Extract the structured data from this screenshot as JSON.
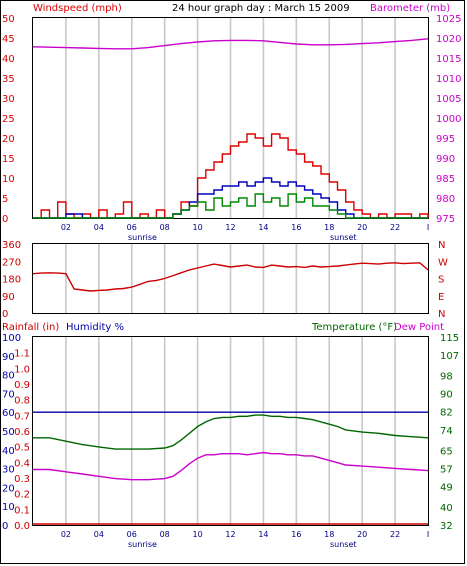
{
  "header": {
    "title": "24 hour graph day : March 15 2009",
    "left_label": "Windspeed (mph)",
    "right_label": "Barometer (mb)"
  },
  "colors": {
    "wind": "#dd0000",
    "gust": "#0000bb",
    "avg": "#008800",
    "baro": "#cc00cc",
    "dir": "#cc0000",
    "rain": "#cc0000",
    "humidity": "#0000aa",
    "temp": "#006600",
    "dew": "#cc00cc",
    "grid": "#c8c8c8",
    "frame": "#000000"
  },
  "x_ticks": [
    "02",
    "04",
    "06",
    "08",
    "10",
    "12",
    "14",
    "16",
    "18",
    "20",
    "22",
    "I"
  ],
  "sun_labels": {
    "sunrise": "sunrise",
    "sunset": "sunset"
  },
  "chart_data": [
    {
      "type": "line",
      "name_left": "Windspeed (mph)",
      "name_right": "Barometer (mb)",
      "title": "24 hour graph day : March 15 2009",
      "x_unit": "hour",
      "xlim": [
        0,
        24
      ],
      "ylim_left": [
        0,
        50
      ],
      "ylim_right": [
        975,
        1025
      ],
      "yticks_left": [
        "0",
        "5",
        "10",
        "15",
        "20",
        "25",
        "30",
        "35",
        "40",
        "45",
        "50"
      ],
      "yticks_right": [
        "975",
        "980",
        "985",
        "990",
        "995",
        "1000",
        "1005",
        "1010",
        "1015",
        "1020",
        "1025"
      ],
      "series": [
        {
          "key": "barometer",
          "axis": "right",
          "x": [
            0,
            1,
            2,
            3,
            4,
            5,
            6,
            7,
            8,
            9,
            10,
            11,
            12,
            13,
            14,
            15,
            16,
            17,
            18,
            19,
            20,
            21,
            22,
            23,
            24
          ],
          "values": [
            1017.8,
            1017.7,
            1017.6,
            1017.5,
            1017.4,
            1017.3,
            1017.3,
            1017.6,
            1018.1,
            1018.6,
            1019.0,
            1019.3,
            1019.4,
            1019.4,
            1019.3,
            1018.9,
            1018.5,
            1018.3,
            1018.3,
            1018.4,
            1018.6,
            1018.8,
            1019.1,
            1019.4,
            1019.8
          ]
        },
        {
          "key": "wind_high",
          "axis": "left",
          "x": [
            0,
            0.5,
            1,
            1.5,
            2,
            2.5,
            3,
            3.5,
            4,
            4.5,
            5,
            5.5,
            6,
            6.5,
            7,
            7.5,
            8,
            8.5,
            9,
            9.5,
            10,
            10.5,
            11,
            11.5,
            12,
            12.5,
            13,
            13.5,
            14,
            14.5,
            15,
            15.5,
            16,
            16.5,
            17,
            17.5,
            18,
            18.5,
            19,
            19.5,
            20,
            20.5,
            21,
            21.5,
            22,
            22.5,
            23,
            23.5,
            24
          ],
          "values": [
            0,
            2,
            0,
            4,
            1,
            0,
            1,
            0,
            2,
            0,
            1,
            4,
            0,
            1,
            0,
            2,
            0,
            1,
            4,
            3,
            10,
            12,
            14,
            16,
            18,
            19,
            21,
            20,
            18,
            21,
            20,
            17,
            16,
            14,
            13,
            11,
            9,
            7,
            4,
            2,
            1,
            0,
            1,
            0,
            1,
            1,
            0,
            1,
            0
          ]
        },
        {
          "key": "wind_gust",
          "axis": "left",
          "x": [
            0,
            1,
            2,
            3,
            4,
            5,
            6,
            7,
            8,
            8.5,
            9,
            9.5,
            10,
            10.5,
            11,
            11.5,
            12,
            12.5,
            13,
            13.5,
            14,
            14.5,
            15,
            15.5,
            16,
            16.5,
            17,
            17.5,
            18,
            18.5,
            19,
            19.5,
            20,
            21,
            22,
            23,
            24
          ],
          "values": [
            0,
            0,
            1,
            0,
            0,
            0,
            0,
            0,
            0,
            1,
            2,
            4,
            6,
            6,
            7,
            8,
            8,
            9,
            8,
            9,
            10,
            9,
            8,
            9,
            8,
            7,
            6,
            5,
            4,
            2,
            1,
            0,
            0,
            0,
            0,
            0,
            0
          ]
        },
        {
          "key": "wind_avg",
          "axis": "left",
          "x": [
            0,
            1,
            2,
            3,
            4,
            5,
            6,
            7,
            8,
            8.5,
            9,
            9.5,
            10,
            10.5,
            11,
            11.5,
            12,
            12.5,
            13,
            13.5,
            14,
            14.5,
            15,
            15.5,
            16,
            16.5,
            17,
            17.5,
            18,
            18.5,
            19,
            20,
            21,
            22,
            23,
            24
          ],
          "values": [
            0,
            0,
            0,
            0,
            0,
            0,
            0,
            0,
            0,
            1,
            2,
            3,
            4,
            2,
            5,
            3,
            4,
            5,
            3,
            6,
            4,
            5,
            3,
            6,
            4,
            5,
            3,
            3,
            2,
            1,
            0,
            0,
            0,
            0,
            0,
            0
          ]
        }
      ]
    },
    {
      "type": "line",
      "name": "wind direction",
      "xlim": [
        0,
        24
      ],
      "ylim": [
        0,
        360
      ],
      "yticks": [
        "0",
        "90",
        "180",
        "270",
        "360"
      ],
      "compass": [
        "N",
        "W",
        "S",
        "E",
        "N"
      ],
      "x": [
        0,
        0.5,
        1,
        1.5,
        2,
        2.5,
        3,
        3.5,
        4,
        4.5,
        5,
        5.5,
        6,
        6.5,
        7,
        7.5,
        8,
        8.5,
        9,
        9.5,
        10,
        10.5,
        11,
        11.5,
        12,
        12.5,
        13,
        13.5,
        14,
        14.5,
        15,
        15.5,
        16,
        16.5,
        17,
        17.5,
        18,
        18.5,
        19,
        19.5,
        20,
        20.5,
        21,
        21.5,
        22,
        22.5,
        23,
        23.5,
        24
      ],
      "values": [
        205,
        208,
        210,
        208,
        205,
        125,
        120,
        115,
        118,
        120,
        125,
        128,
        135,
        150,
        165,
        170,
        180,
        195,
        210,
        225,
        235,
        245,
        255,
        248,
        240,
        245,
        250,
        240,
        238,
        250,
        245,
        240,
        242,
        238,
        245,
        240,
        242,
        245,
        250,
        255,
        260,
        258,
        255,
        260,
        262,
        258,
        260,
        262,
        225
      ]
    },
    {
      "type": "line",
      "xlim": [
        0,
        24
      ],
      "left_label_rain": "Rainfall (in)",
      "left_label_humidity": "Humidity %",
      "right_label_temp": "Temperature (°F)",
      "right_label_dew": "Dew Point",
      "ylim_humidity": [
        0,
        100
      ],
      "ylim_rain": [
        0,
        1.2
      ],
      "ylim_temp": [
        32,
        115
      ],
      "yticks_humidity": [
        "0",
        "10",
        "20",
        "30",
        "40",
        "50",
        "60",
        "70",
        "80",
        "90",
        "100"
      ],
      "yticks_rain": [
        "0.0",
        "0.1",
        "0.2",
        "0.3",
        "0.4",
        "0.5",
        "0.6",
        "0.7",
        "0.8",
        "0.9",
        "1.0",
        "1.1"
      ],
      "yticks_temp": [
        "32",
        "40",
        "49",
        "57",
        "65",
        "74",
        "82",
        "90",
        "98",
        "107",
        "115"
      ],
      "series": [
        {
          "key": "humidity",
          "axis": "humidity",
          "x": [
            0,
            24
          ],
          "values": [
            60,
            60
          ]
        },
        {
          "key": "rainfall",
          "axis": "rain",
          "x": [
            0,
            24
          ],
          "values": [
            0,
            0
          ]
        },
        {
          "key": "temperature",
          "axis": "temp",
          "x": [
            0,
            1,
            2,
            3,
            4,
            5,
            6,
            7,
            8,
            8.5,
            9,
            9.5,
            10,
            10.5,
            11,
            11.5,
            12,
            12.5,
            13,
            13.5,
            14,
            14.5,
            15,
            15.5,
            16,
            16.5,
            17,
            17.5,
            18,
            18.5,
            19,
            20,
            21,
            22,
            23,
            24
          ],
          "values": [
            70.5,
            70.5,
            69,
            67.5,
            66.5,
            65.5,
            65.5,
            65.5,
            66,
            67,
            69.5,
            72.5,
            75.5,
            77.5,
            79,
            79.5,
            79.5,
            80,
            80,
            80.5,
            80.5,
            80,
            80,
            79.5,
            79.5,
            79,
            78.5,
            77.5,
            76.5,
            75.5,
            74,
            73,
            72.5,
            71.5,
            71,
            70.5
          ]
        },
        {
          "key": "dewpoint",
          "axis": "temp",
          "x": [
            0,
            1,
            2,
            3,
            4,
            5,
            6,
            7,
            8,
            8.5,
            9,
            9.5,
            10,
            10.5,
            11,
            11.5,
            12,
            12.5,
            13,
            13.5,
            14,
            14.5,
            15,
            15.5,
            16,
            16.5,
            17,
            17.5,
            18,
            18.5,
            19,
            20,
            21,
            22,
            23,
            24
          ],
          "values": [
            56.5,
            56.5,
            55.5,
            54.5,
            53.5,
            52.5,
            52,
            52,
            52.5,
            53.5,
            56,
            59,
            61.5,
            63,
            63,
            63.5,
            63.5,
            63.5,
            63,
            63.5,
            64,
            63.5,
            63.5,
            63,
            63,
            62.5,
            62.5,
            61.5,
            60.5,
            59.5,
            58.5,
            58,
            57.5,
            57,
            56.5,
            56
          ]
        }
      ]
    }
  ]
}
